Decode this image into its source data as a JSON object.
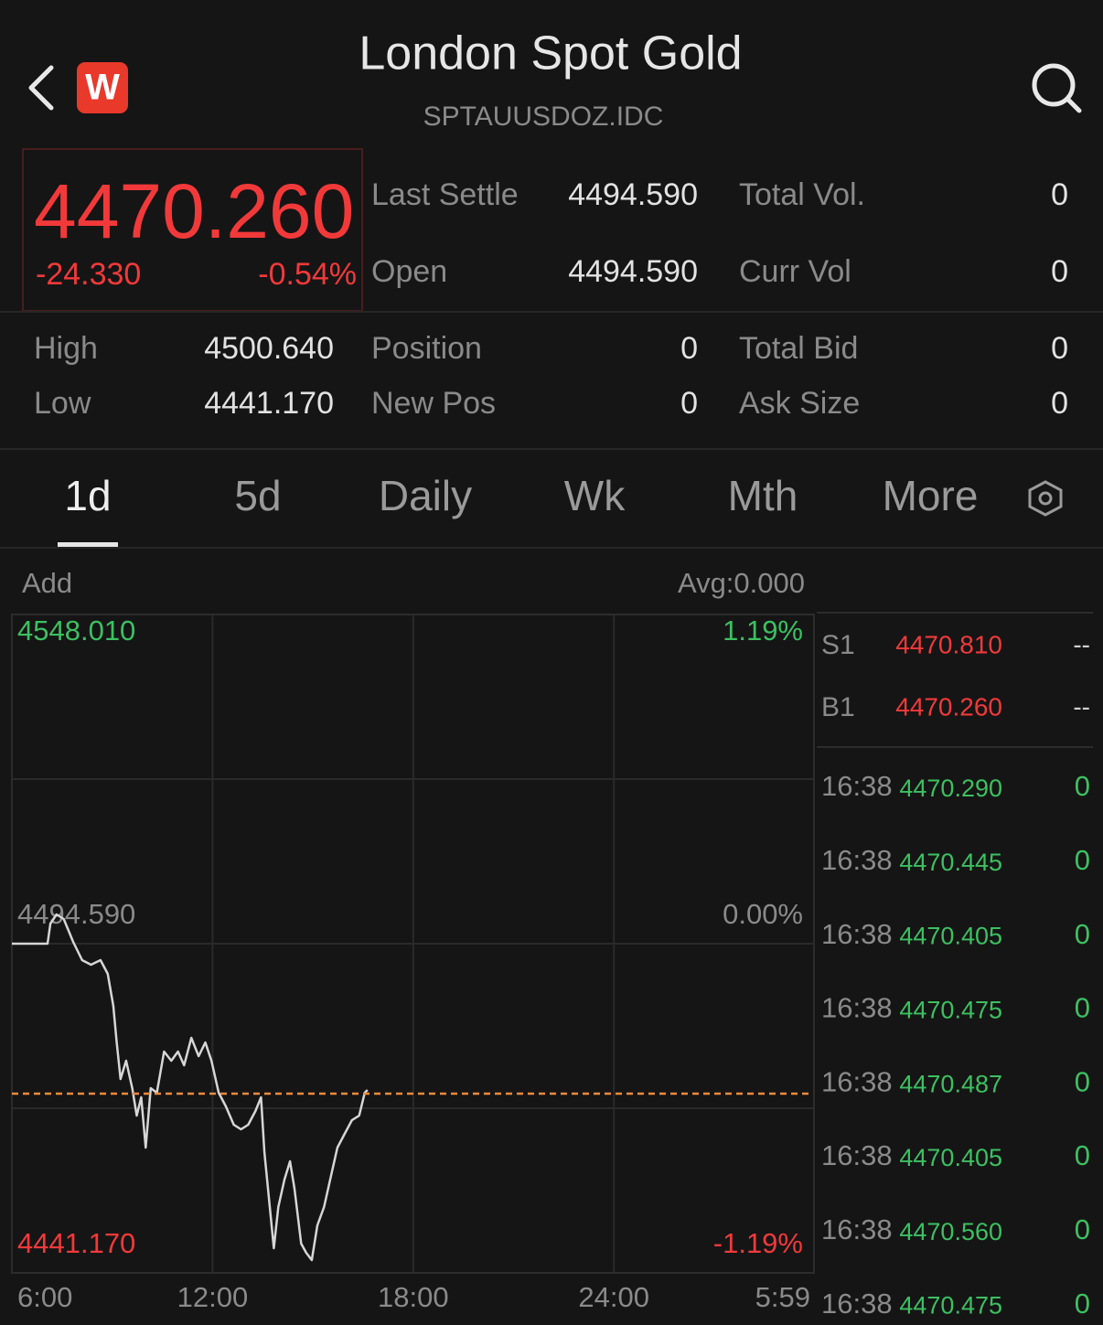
{
  "header": {
    "logo": "W",
    "title": "London Spot Gold",
    "symbol": "SPTAUUSDOZ.IDC"
  },
  "quote": {
    "price": "4470.260",
    "change": "-24.330",
    "change_pct": "-0.54%"
  },
  "stats": [
    [
      {
        "label": "Last Settle",
        "value": "4494.590"
      },
      {
        "label": "Total Vol.",
        "value": "0"
      }
    ],
    [
      {
        "label": "Open",
        "value": "4494.590"
      },
      {
        "label": "Curr Vol",
        "value": "0"
      }
    ],
    [
      {
        "label": "High",
        "value": "4500.640"
      },
      {
        "label": "Position",
        "value": "0"
      },
      {
        "label": "Total Bid",
        "value": "0"
      }
    ],
    [
      {
        "label": "Low",
        "value": "4441.170"
      },
      {
        "label": "New Pos",
        "value": "0"
      },
      {
        "label": "Ask Size",
        "value": "0"
      }
    ]
  ],
  "tabs": [
    "1d",
    "5d",
    "Daily",
    "Wk",
    "Mth",
    "More"
  ],
  "chart": {
    "type": "line",
    "add_label": "Add",
    "avg_label": "Avg:0.000",
    "xlim": [
      0,
      1439
    ],
    "xticks": [
      {
        "value": 0,
        "label": "6:00"
      },
      {
        "value": 360,
        "label": "12:00"
      },
      {
        "value": 720,
        "label": "18:00"
      },
      {
        "value": 1080,
        "label": "24:00"
      },
      {
        "value": 1439,
        "label": "5:59"
      }
    ],
    "ylim": [
      4441.17,
      4548.01
    ],
    "yticks": [
      {
        "value": 4441.17,
        "label": "4441.170"
      },
      {
        "value": 4494.59,
        "label": "4494.590"
      },
      {
        "value": 4548.01,
        "label": "4548.010"
      }
    ],
    "y2lim": [
      -1.19,
      1.19
    ],
    "y2ticks": [
      {
        "value": -1.19,
        "label": "-1.19%"
      },
      {
        "value": 0,
        "label": "0.00%"
      },
      {
        "value": 1.19,
        "label": "1.19%"
      }
    ],
    "grid_rows": 4,
    "line": {
      "color": "#d6d6d6",
      "x": [
        0,
        64,
        69,
        80,
        93,
        110,
        126,
        142,
        159,
        172,
        182,
        188,
        195,
        205,
        216,
        224,
        232,
        240,
        249,
        260,
        273,
        286,
        298,
        309,
        322,
        335,
        347,
        358,
        371,
        384,
        398,
        411,
        424,
        437,
        447,
        453,
        461,
        470,
        478,
        489,
        499,
        507,
        519,
        528,
        538,
        548,
        560,
        571,
        584,
        597,
        610,
        623,
        633,
        638
      ],
      "values": [
        4494.59,
        4494.59,
        4497.85,
        4499.34,
        4498.6,
        4494.89,
        4491.92,
        4491.18,
        4491.92,
        4489.69,
        4484.5,
        4478.56,
        4472.63,
        4475.6,
        4471.15,
        4466.7,
        4469.66,
        4461.5,
        4471.15,
        4470.4,
        4477.08,
        4475.6,
        4477.08,
        4474.86,
        4479.31,
        4476.34,
        4478.56,
        4475.6,
        4470.4,
        4468.18,
        4465.21,
        4464.47,
        4465.21,
        4467.43,
        4469.66,
        4460.76,
        4453.34,
        4445.18,
        4451.86,
        4456.31,
        4459.27,
        4454.82,
        4445.92,
        4444.44,
        4443.25,
        4448.89,
        4451.86,
        4456.31,
        4461.5,
        4463.73,
        4465.95,
        4466.7,
        4470.4,
        4470.85
      ]
    },
    "last_price": 4470.26,
    "last_price_color": "#f08a3c"
  },
  "book": {
    "quotes": [
      {
        "label": "S1",
        "price": "4470.810",
        "size": "--"
      },
      {
        "label": "B1",
        "price": "4470.260",
        "size": "--"
      }
    ],
    "trades": [
      {
        "time": "16:38",
        "price": "4470.290",
        "size": "0"
      },
      {
        "time": "16:38",
        "price": "4470.445",
        "size": "0"
      },
      {
        "time": "16:38",
        "price": "4470.405",
        "size": "0"
      },
      {
        "time": "16:38",
        "price": "4470.475",
        "size": "0"
      },
      {
        "time": "16:38",
        "price": "4470.487",
        "size": "0"
      },
      {
        "time": "16:38",
        "price": "4470.405",
        "size": "0"
      },
      {
        "time": "16:38",
        "price": "4470.560",
        "size": "0"
      },
      {
        "time": "16:38",
        "price": "4470.475",
        "size": "0"
      }
    ]
  }
}
